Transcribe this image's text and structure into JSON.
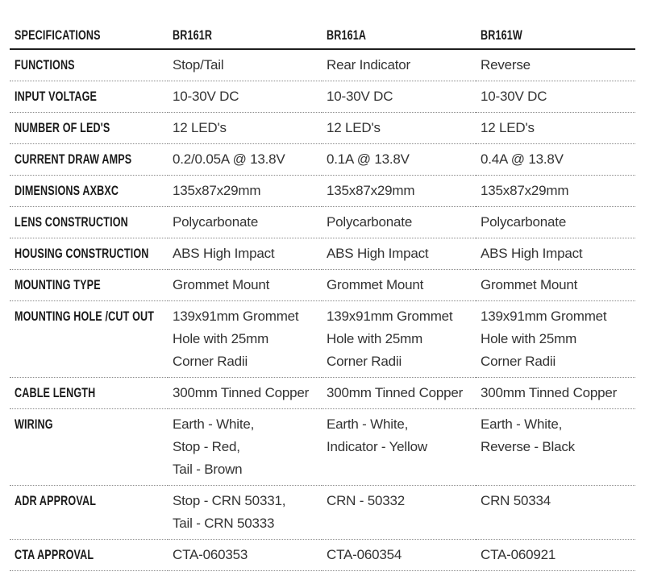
{
  "table": {
    "header": [
      "SPECIFICATIONS",
      "BR161R",
      "BR161A",
      "BR161W"
    ],
    "rows": [
      {
        "label": "FUNCTIONS",
        "cells": [
          [
            "Stop/Tail"
          ],
          [
            "Rear Indicator"
          ],
          [
            "Reverse"
          ]
        ]
      },
      {
        "label": "INPUT VOLTAGE",
        "cells": [
          [
            "10-30V DC"
          ],
          [
            "10-30V DC"
          ],
          [
            "10-30V DC"
          ]
        ]
      },
      {
        "label": "NUMBER OF LED'S",
        "cells": [
          [
            "12 LED's"
          ],
          [
            "12 LED's"
          ],
          [
            "12 LED's"
          ]
        ]
      },
      {
        "label": "CURRENT DRAW AMPS",
        "cells": [
          [
            "0.2/0.05A @ 13.8V"
          ],
          [
            "0.1A @ 13.8V"
          ],
          [
            "0.4A @ 13.8V"
          ]
        ]
      },
      {
        "label": "DIMENSIONS AXBXC",
        "cells": [
          [
            "135x87x29mm"
          ],
          [
            "135x87x29mm"
          ],
          [
            "135x87x29mm"
          ]
        ]
      },
      {
        "label": "LENS CONSTRUCTION",
        "cells": [
          [
            "Polycarbonate"
          ],
          [
            "Polycarbonate"
          ],
          [
            "Polycarbonate"
          ]
        ]
      },
      {
        "label": "HOUSING CONSTRUCTION",
        "cells": [
          [
            "ABS High Impact"
          ],
          [
            "ABS High Impact"
          ],
          [
            "ABS High Impact"
          ]
        ]
      },
      {
        "label": "MOUNTING TYPE",
        "cells": [
          [
            "Grommet Mount"
          ],
          [
            "Grommet Mount"
          ],
          [
            "Grommet Mount"
          ]
        ]
      },
      {
        "label": "MOUNTING HOLE /CUT OUT",
        "cells": [
          [
            "139x91mm Grommet",
            "Hole with 25mm",
            "Corner Radii"
          ],
          [
            "139x91mm Grommet",
            "Hole with 25mm",
            "Corner Radii"
          ],
          [
            "139x91mm Grommet",
            "Hole with 25mm",
            "Corner Radii"
          ]
        ]
      },
      {
        "label": "CABLE LENGTH",
        "cells": [
          [
            "300mm Tinned Copper"
          ],
          [
            "300mm Tinned Copper"
          ],
          [
            "300mm Tinned Copper"
          ]
        ]
      },
      {
        "label": "WIRING",
        "cells": [
          [
            "Earth - White,",
            "Stop - Red,",
            "Tail - Brown"
          ],
          [
            "Earth - White,",
            "Indicator - Yellow"
          ],
          [
            "Earth - White,",
            "Reverse - Black"
          ]
        ]
      },
      {
        "label": "ADR APPROVAL",
        "cells": [
          [
            "Stop - CRN 50331,",
            "Tail - CRN 50333"
          ],
          [
            "CRN - 50332"
          ],
          [
            "CRN 50334"
          ]
        ]
      },
      {
        "label": "CTA APPROVAL",
        "cells": [
          [
            "CTA-060353"
          ],
          [
            "CTA-060354"
          ],
          [
            "CTA-060921"
          ]
        ]
      }
    ]
  }
}
